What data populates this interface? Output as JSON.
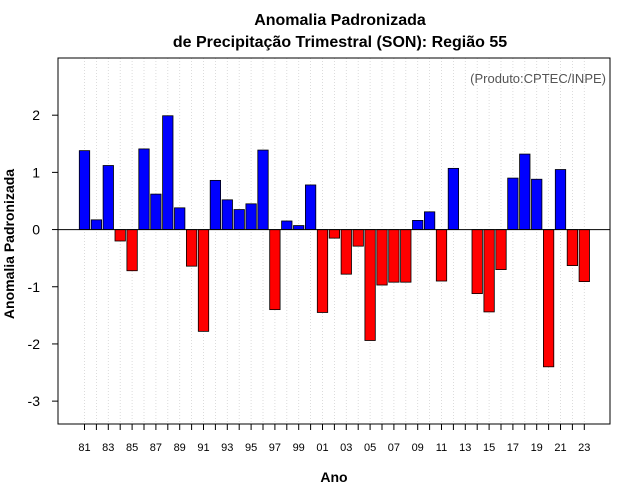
{
  "chart_data": {
    "type": "bar",
    "title": "Anomalia Padronizada",
    "subtitle": "de Precipitação Trimestral (SON): Região 55",
    "annotation": "(Produto:CPTEC/INPE)",
    "xlabel": "Ano",
    "ylabel": "Anomalia Padronizada",
    "ylim": [
      -3.4,
      3.0
    ],
    "yticks": [
      -3,
      -2,
      -1,
      0,
      1,
      2
    ],
    "grid": "vertical dotted",
    "positive_color": "#0000ff",
    "negative_color": "#ff0000",
    "categories": [
      "81",
      "82",
      "83",
      "84",
      "85",
      "86",
      "87",
      "88",
      "89",
      "90",
      "91",
      "92",
      "93",
      "94",
      "95",
      "96",
      "97",
      "98",
      "99",
      "00",
      "01",
      "02",
      "03",
      "04",
      "05",
      "06",
      "07",
      "08",
      "09",
      "10",
      "11",
      "12",
      "13",
      "14",
      "15",
      "16",
      "17",
      "18",
      "19",
      "20",
      "21",
      "22",
      "23"
    ],
    "tick_labels": [
      "81",
      "83",
      "85",
      "87",
      "89",
      "91",
      "93",
      "95",
      "97",
      "99",
      "01",
      "03",
      "05",
      "07",
      "09",
      "11",
      "13",
      "15",
      "17",
      "19",
      "21",
      "23"
    ],
    "values": [
      1.38,
      0.17,
      1.12,
      -0.2,
      -0.72,
      1.41,
      0.62,
      1.99,
      0.38,
      -0.64,
      -1.78,
      0.86,
      0.52,
      0.35,
      0.45,
      1.39,
      -1.4,
      0.15,
      0.07,
      0.78,
      -1.45,
      -0.15,
      -0.78,
      -0.29,
      -1.94,
      -0.97,
      -0.92,
      -0.92,
      0.16,
      0.31,
      -0.9,
      1.07,
      0.0,
      -1.12,
      -1.44,
      -0.7,
      0.9,
      1.32,
      0.88,
      -2.4,
      1.05,
      -0.63,
      -0.91
    ]
  }
}
